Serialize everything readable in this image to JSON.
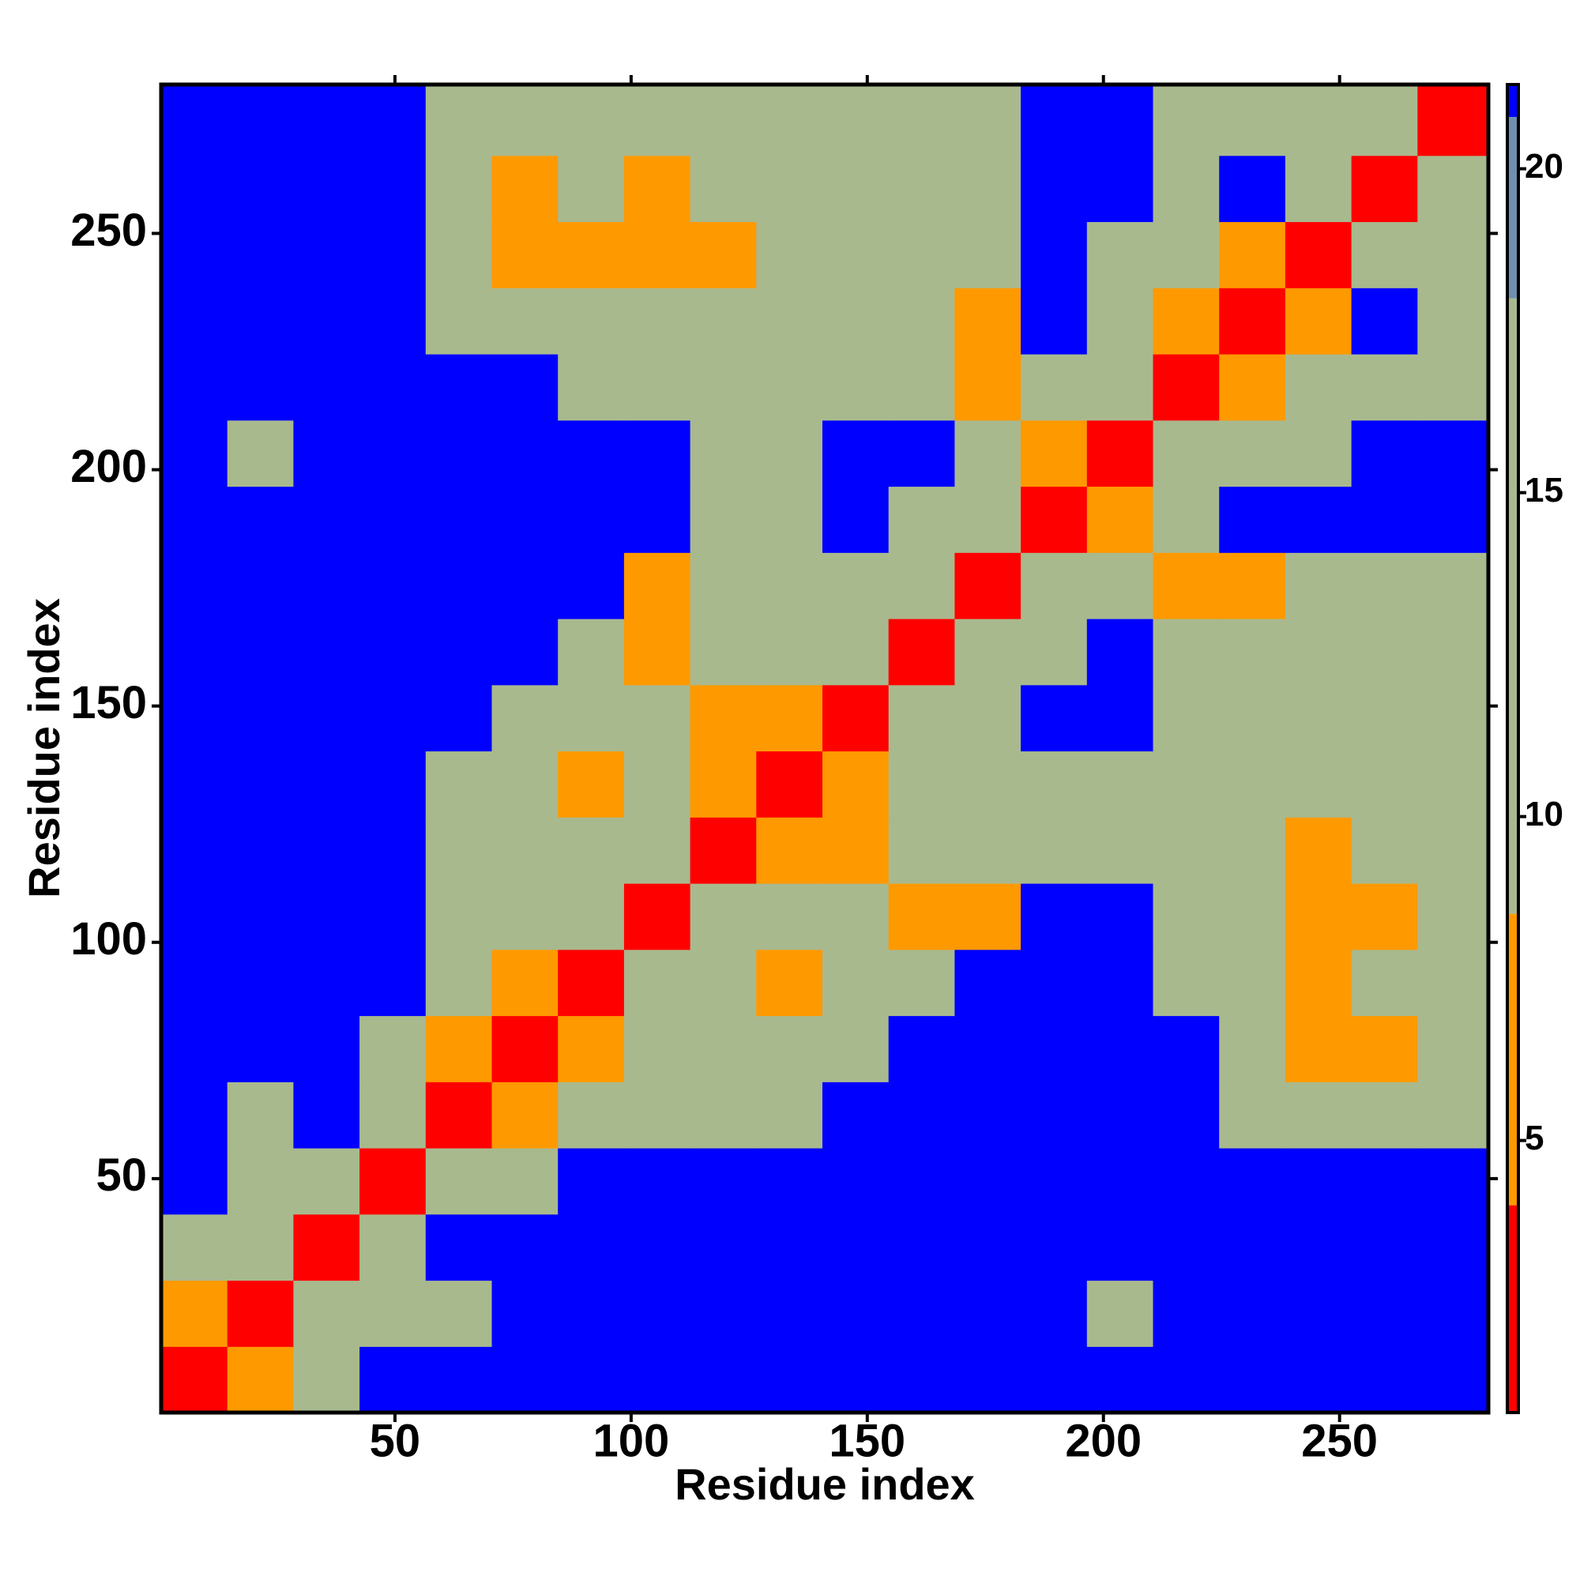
{
  "chart_data": {
    "type": "heatmap",
    "xlabel": "Residue index",
    "ylabel": "Residue index",
    "xlim": [
      0.5,
      281.5
    ],
    "ylim": [
      0.5,
      281.5
    ],
    "xticks": [
      50,
      100,
      150,
      200,
      250
    ],
    "yticks": [
      50,
      100,
      150,
      200,
      250
    ],
    "bins": [
      0.5,
      14.5,
      28.5,
      42.5,
      56.5,
      70.5,
      84.5,
      98.5,
      112.5,
      126.5,
      140.5,
      154.5,
      168.5,
      182.5,
      196.5,
      210.5,
      224.5,
      238.5,
      252.5,
      266.5,
      281.5
    ],
    "values": [
      [
        3,
        7,
        12,
        21,
        21,
        21,
        21,
        21,
        21,
        21,
        21,
        21,
        21,
        21,
        21,
        21,
        21,
        21,
        21,
        21
      ],
      [
        7,
        3,
        12,
        12,
        10,
        21,
        21,
        21,
        21,
        21,
        21,
        21,
        21,
        21,
        12,
        21,
        21,
        21,
        21,
        21
      ],
      [
        12,
        12,
        3,
        12,
        21,
        21,
        21,
        21,
        21,
        21,
        21,
        21,
        21,
        21,
        21,
        21,
        21,
        21,
        21,
        21
      ],
      [
        21,
        12,
        12,
        3,
        12,
        12,
        21,
        21,
        21,
        21,
        21,
        21,
        21,
        21,
        21,
        21,
        21,
        21,
        21,
        21
      ],
      [
        21,
        10,
        21,
        12,
        3,
        7,
        12,
        12,
        12,
        12,
        21,
        21,
        21,
        21,
        21,
        21,
        12,
        12,
        12,
        12
      ],
      [
        21,
        21,
        21,
        12,
        7,
        3,
        7,
        12,
        12,
        12,
        12,
        21,
        21,
        21,
        21,
        21,
        12,
        7,
        7,
        12
      ],
      [
        21,
        21,
        21,
        21,
        12,
        7,
        3,
        12,
        12,
        7,
        12,
        12,
        21,
        21,
        21,
        12,
        12,
        7,
        12,
        12
      ],
      [
        21,
        21,
        21,
        21,
        12,
        12,
        12,
        3,
        12,
        12,
        12,
        7,
        7,
        21,
        21,
        12,
        12,
        7,
        7,
        12
      ],
      [
        21,
        21,
        21,
        21,
        12,
        12,
        12,
        12,
        3,
        7,
        7,
        12,
        12,
        12,
        12,
        12,
        12,
        7,
        12,
        12
      ],
      [
        21,
        21,
        21,
        21,
        12,
        12,
        7,
        12,
        7,
        3,
        7,
        12,
        12,
        12,
        12,
        12,
        12,
        12,
        12,
        12
      ],
      [
        21,
        21,
        21,
        21,
        21,
        12,
        12,
        12,
        7,
        7,
        3,
        12,
        12,
        21,
        21,
        12,
        12,
        12,
        12,
        12
      ],
      [
        21,
        21,
        21,
        21,
        21,
        21,
        12,
        7,
        12,
        12,
        12,
        3,
        12,
        12,
        21,
        12,
        12,
        12,
        12,
        12
      ],
      [
        21,
        21,
        21,
        21,
        21,
        21,
        21,
        7,
        12,
        12,
        12,
        12,
        3,
        12,
        12,
        7,
        7,
        12,
        12,
        12
      ],
      [
        21,
        21,
        21,
        21,
        21,
        21,
        21,
        21,
        12,
        12,
        21,
        12,
        12,
        3,
        7,
        12,
        21,
        21,
        21,
        21
      ],
      [
        21,
        12,
        21,
        21,
        21,
        21,
        21,
        21,
        12,
        12,
        21,
        21,
        12,
        7,
        3,
        12,
        12,
        12,
        21,
        21
      ],
      [
        21,
        21,
        21,
        21,
        21,
        21,
        12,
        12,
        12,
        12,
        12,
        12,
        7,
        12,
        12,
        3,
        7,
        12,
        12,
        12
      ],
      [
        21,
        21,
        21,
        21,
        12,
        12,
        12,
        12,
        12,
        12,
        12,
        12,
        7,
        21,
        12,
        7,
        3,
        7,
        21,
        12
      ],
      [
        21,
        21,
        21,
        21,
        12,
        7,
        7,
        7,
        7,
        12,
        12,
        12,
        12,
        21,
        12,
        12,
        7,
        3,
        12,
        12
      ],
      [
        21,
        21,
        21,
        21,
        12,
        7,
        12,
        7,
        12,
        12,
        12,
        12,
        12,
        21,
        21,
        12,
        21,
        12,
        3,
        12
      ],
      [
        21,
        21,
        21,
        21,
        12,
        12,
        12,
        12,
        12,
        12,
        12,
        12,
        12,
        21,
        21,
        12,
        12,
        12,
        12,
        3
      ]
    ],
    "colorbar": {
      "lim": [
        0.8,
        21.3
      ],
      "ticks": [
        5,
        10,
        15,
        20
      ],
      "stops": [
        {
          "from": 0.8,
          "to": 4,
          "color": "#ff0000"
        },
        {
          "from": 4,
          "to": 8.5,
          "color": "#ff9900"
        },
        {
          "from": 8.5,
          "to": 18,
          "color": "#a9b98e"
        },
        {
          "from": 18,
          "to": 20.8,
          "color": "#6f8fb0"
        },
        {
          "from": 20.8,
          "to": 21.3,
          "color": "#0000ff"
        }
      ]
    }
  }
}
